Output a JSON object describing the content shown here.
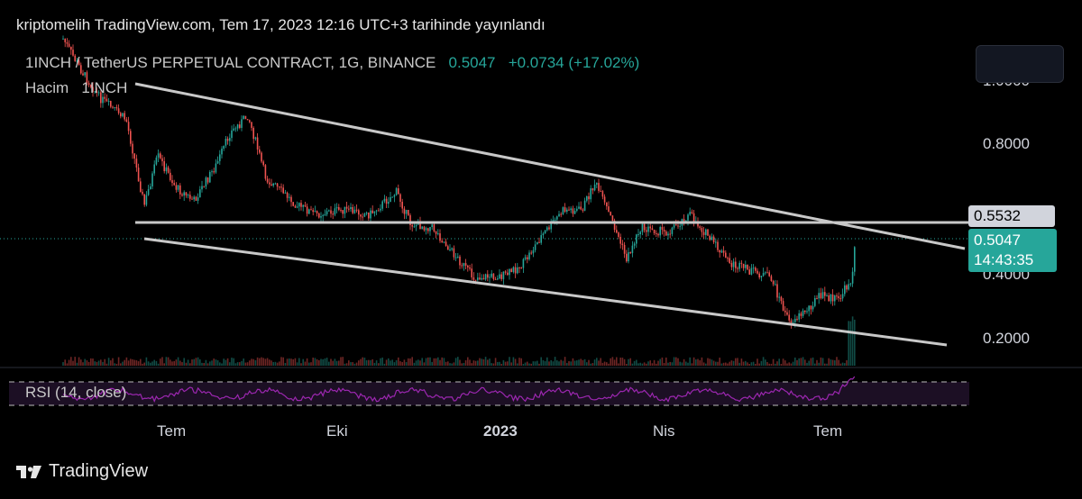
{
  "header": {
    "published_text": "kriptomelih TradingView.com, Tem 17, 2023 12:16 UTC+3 tarihinde yayınlandı"
  },
  "legend": {
    "symbol": "1INCH / TetherUS PERPETUAL CONTRACT, 1G, BINANCE",
    "price": "0.5047",
    "change": "+0.0734",
    "change_pct": "(+17.02%)",
    "volume_label": "Hacim",
    "volume_symbol": "1INCH",
    "rsi_label": "RSI (14, close)"
  },
  "price_scale": {
    "labels": [
      "1.0000",
      "0.8000",
      "0.4000",
      "0.2000"
    ],
    "level_tag": "0.5532",
    "last_price": "0.5047",
    "countdown": "14:43:35"
  },
  "time_scale": {
    "labels": [
      "Tem",
      "Eki",
      "2023",
      "Nis",
      "Tem"
    ]
  },
  "footer": {
    "brand": "TradingView"
  },
  "colors": {
    "up": "#26a69a",
    "down": "#ef5350",
    "rsi": "#9c27b0",
    "trendline": "#c8c8c8"
  },
  "icons": [
    "tradingview-logo-icon"
  ]
}
